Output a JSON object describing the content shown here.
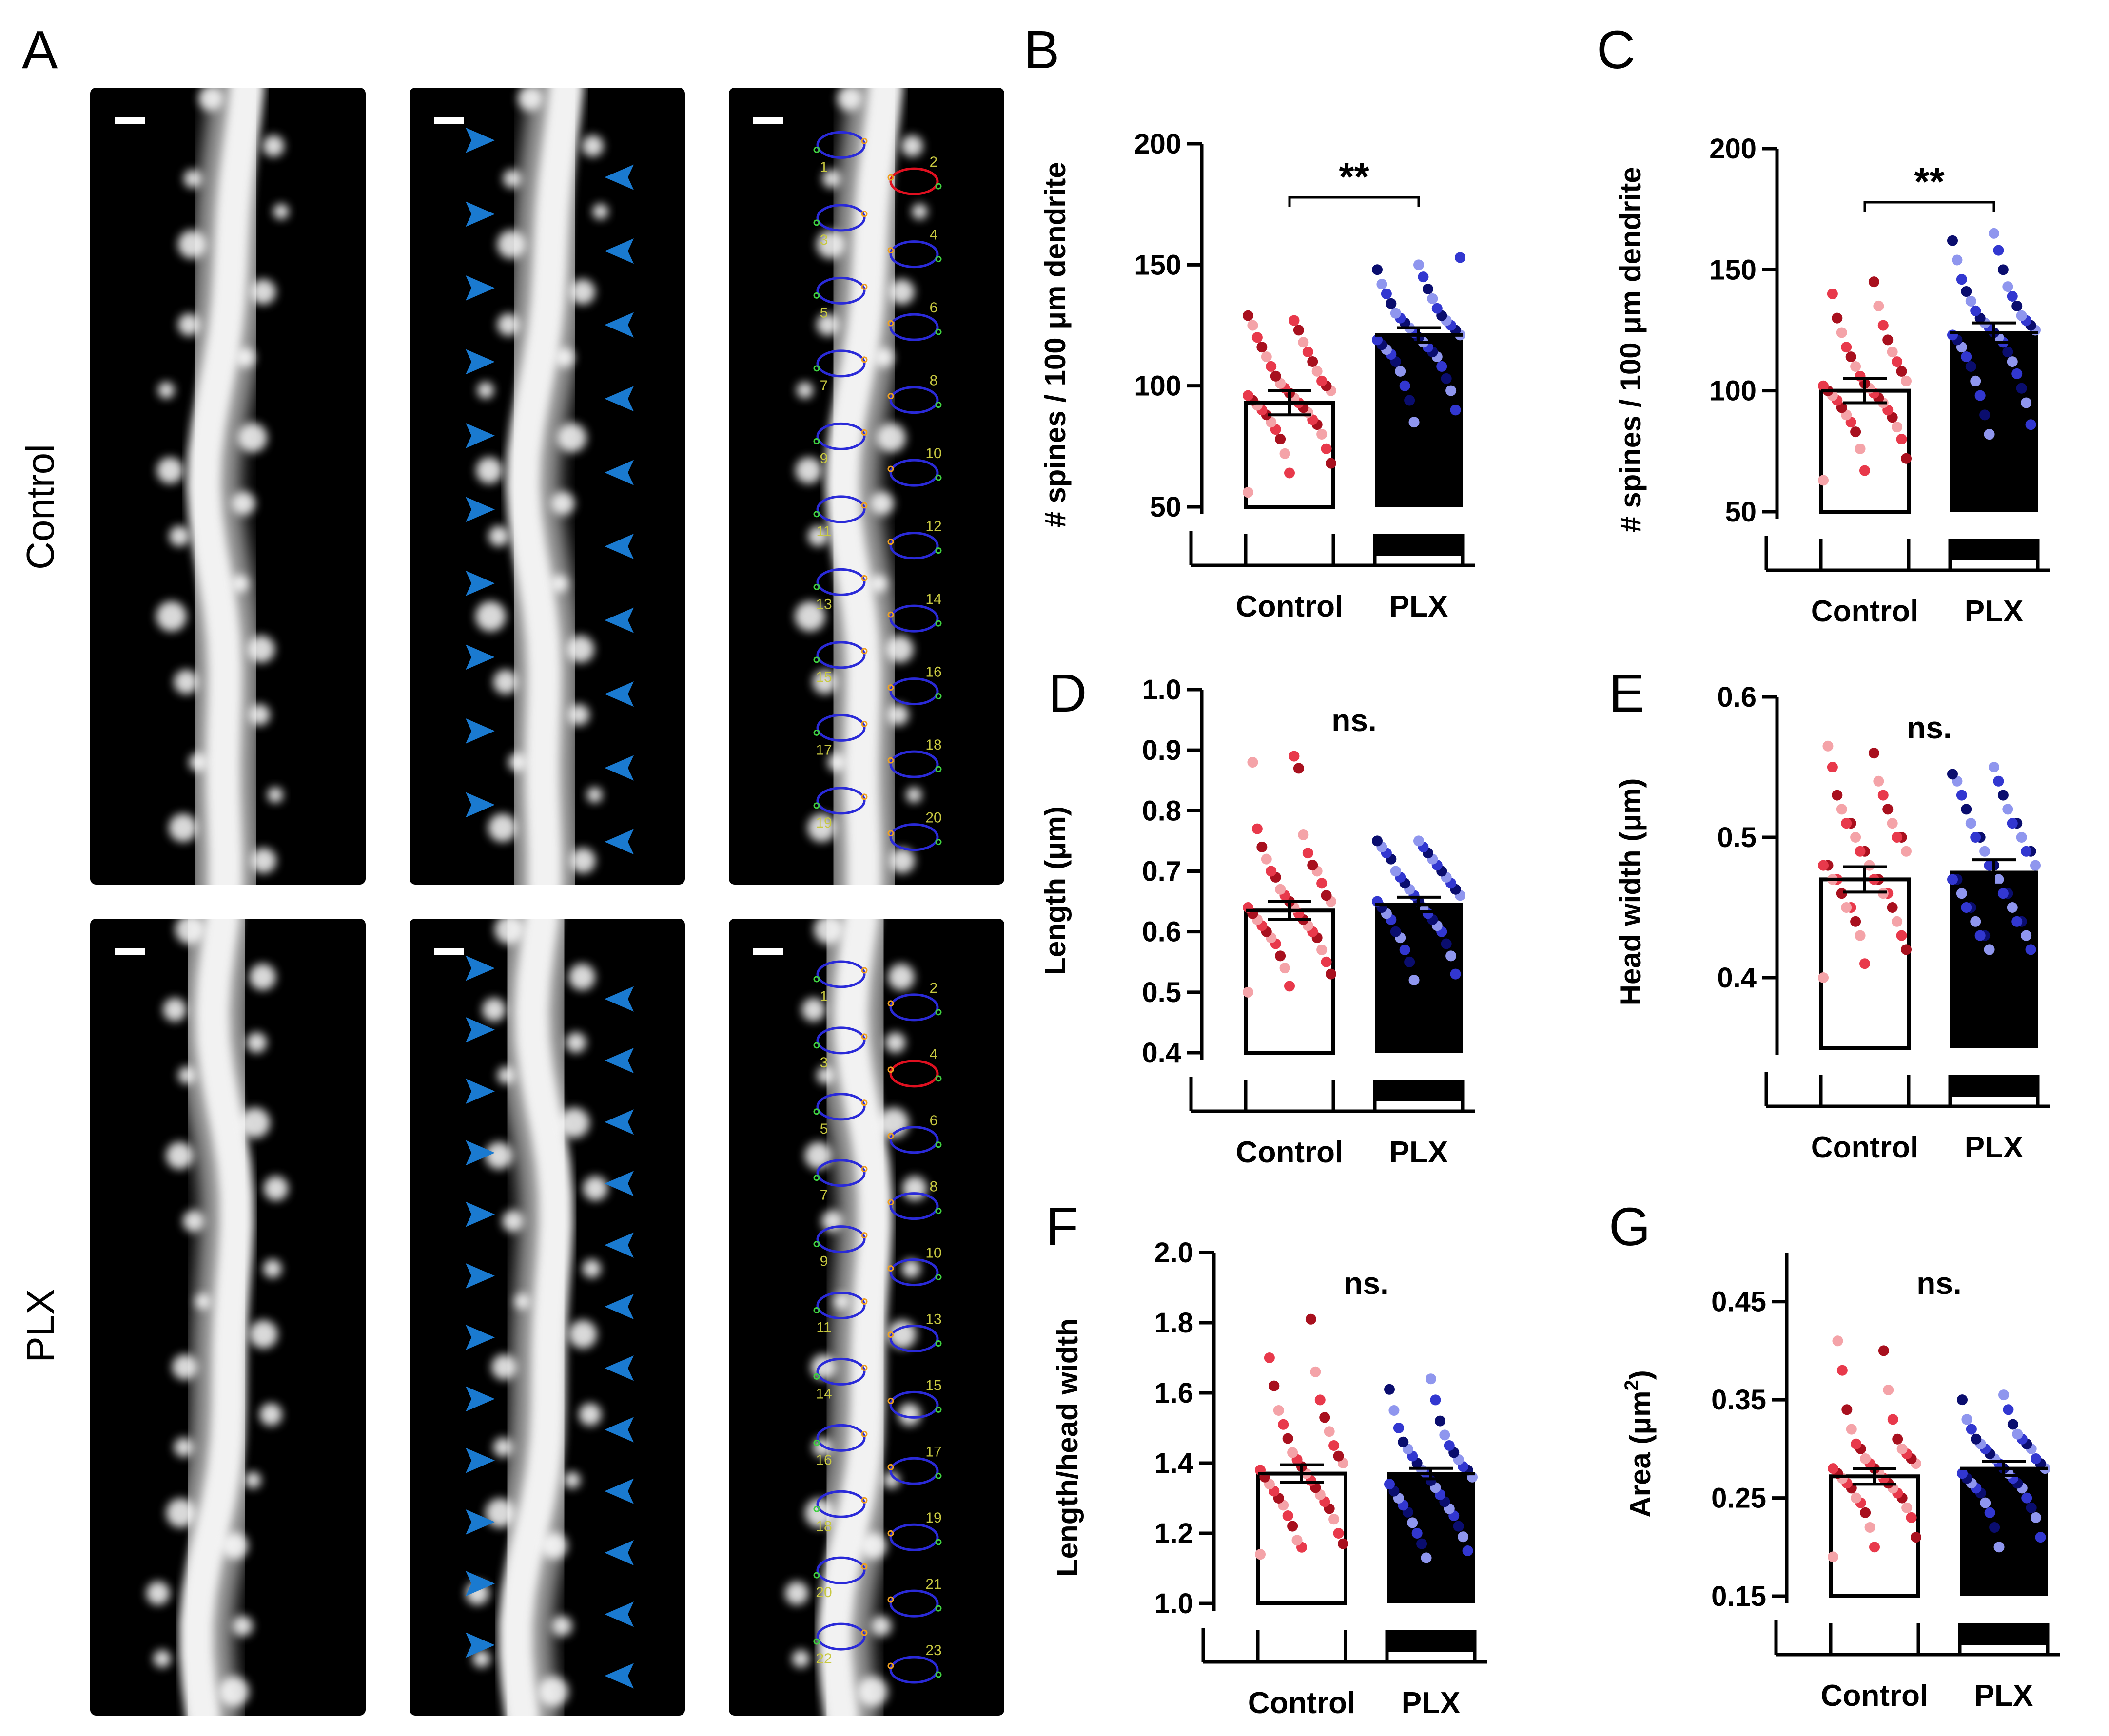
{
  "panel_letters": {
    "A": "A",
    "B": "B",
    "C": "C",
    "D": "D",
    "E": "E",
    "F": "F",
    "G": "G"
  },
  "row_labels": {
    "control": "Control",
    "plx": "PLX"
  },
  "spine_numbers": {
    "control": [
      "1",
      "2",
      "3",
      "4",
      "5",
      "6",
      "7",
      "8",
      "9",
      "10",
      "11",
      "12",
      "13",
      "14",
      "15",
      "16",
      "17",
      "18",
      "19",
      "20"
    ],
    "plx": [
      "1",
      "2",
      "3",
      "4",
      "5",
      "6",
      "7",
      "8",
      "9",
      "10",
      "11",
      "13",
      "14",
      "15",
      "16",
      "17",
      "18",
      "19",
      "20",
      "21",
      "22",
      "23"
    ]
  },
  "colors": {
    "control_light": "#f4a3a8",
    "control_mid": "#e8394b",
    "control_dark": "#a8101e",
    "plx_light": "#8f96ee",
    "plx_mid": "#3237d0",
    "plx_dark": "#0a0d6e",
    "arrow": "#1a7ad0",
    "trace_blue": "#2a2ad8",
    "trace_red": "#e01020"
  },
  "chart_data": [
    {
      "panel": "B",
      "type": "bar",
      "categories": [
        "Control",
        "PLX"
      ],
      "values": [
        93,
        121
      ],
      "sem": [
        5,
        3
      ],
      "ylabel": "# spines / 100 μm dendrite",
      "ylim": [
        50,
        200
      ],
      "yticks": [
        "50",
        "100",
        "150",
        "200"
      ],
      "annotation": "**",
      "points": {
        "Control": [
          56,
          64,
          68,
          72,
          74,
          78,
          80,
          82,
          84,
          85,
          86,
          88,
          89,
          90,
          91,
          92,
          93,
          94,
          95,
          96,
          97,
          98,
          99,
          100,
          101,
          102,
          104,
          106,
          108,
          110,
          112,
          114,
          116,
          118,
          120,
          123,
          125,
          127,
          129
        ],
        "PLX": [
          85,
          90,
          94,
          98,
          100,
          103,
          106,
          108,
          110,
          112,
          113,
          114,
          115,
          116,
          117,
          118,
          119,
          120,
          121,
          122,
          123,
          124,
          125,
          126,
          127,
          128,
          129,
          130,
          132,
          134,
          136,
          138,
          140,
          142,
          145,
          148,
          150,
          153
        ]
      }
    },
    {
      "panel": "C",
      "type": "bar",
      "categories": [
        "Control",
        "PLX"
      ],
      "values": [
        100,
        124
      ],
      "sem": [
        5,
        4
      ],
      "ylabel": "# spines / 100 μm dendrite",
      "ylim": [
        50,
        200
      ],
      "yticks": [
        "50",
        "100",
        "150",
        "200"
      ],
      "annotation": "**",
      "points": {
        "Control": [
          63,
          67,
          72,
          76,
          80,
          83,
          85,
          87,
          89,
          90,
          92,
          93,
          95,
          96,
          97,
          98,
          99,
          100,
          101,
          102,
          103,
          104,
          106,
          108,
          110,
          112,
          114,
          116,
          118,
          121,
          124,
          127,
          130,
          135,
          140,
          145
        ],
        "PLX": [
          82,
          86,
          90,
          95,
          98,
          101,
          104,
          107,
          110,
          112,
          114,
          116,
          118,
          120,
          121,
          122,
          123,
          124,
          125,
          126,
          127,
          128,
          129,
          130,
          131,
          133,
          135,
          137,
          139,
          141,
          143,
          146,
          150,
          154,
          158,
          162,
          165
        ]
      }
    },
    {
      "panel": "D",
      "type": "bar",
      "categories": [
        "Control",
        "PLX"
      ],
      "values": [
        0.635,
        0.645
      ],
      "sem": [
        0.015,
        0.012
      ],
      "ylabel": "Length (μm)",
      "ylim": [
        0.4,
        1.0
      ],
      "yticks": [
        "0.4",
        "0.5",
        "0.6",
        "0.7",
        "0.8",
        "0.9",
        "1.0"
      ],
      "annotation": "ns.",
      "points": {
        "Control": [
          0.5,
          0.51,
          0.53,
          0.54,
          0.55,
          0.56,
          0.57,
          0.58,
          0.59,
          0.59,
          0.6,
          0.6,
          0.61,
          0.61,
          0.62,
          0.62,
          0.63,
          0.63,
          0.64,
          0.64,
          0.65,
          0.65,
          0.66,
          0.66,
          0.67,
          0.68,
          0.69,
          0.7,
          0.7,
          0.71,
          0.72,
          0.73,
          0.74,
          0.76,
          0.77,
          0.87,
          0.88,
          0.89
        ],
        "PLX": [
          0.52,
          0.53,
          0.55,
          0.56,
          0.57,
          0.58,
          0.59,
          0.6,
          0.6,
          0.61,
          0.62,
          0.62,
          0.63,
          0.63,
          0.64,
          0.64,
          0.65,
          0.65,
          0.66,
          0.66,
          0.67,
          0.67,
          0.68,
          0.68,
          0.69,
          0.69,
          0.7,
          0.7,
          0.71,
          0.72,
          0.72,
          0.73,
          0.73,
          0.74,
          0.74,
          0.75,
          0.75
        ]
      }
    },
    {
      "panel": "E",
      "type": "bar",
      "categories": [
        "Control",
        "PLX"
      ],
      "values": [
        0.47,
        0.475
      ],
      "sem": [
        0.009,
        0.009
      ],
      "ylabel": "Head width (μm)",
      "ylim": [
        0.35,
        0.6
      ],
      "yticks": [
        "0.4",
        "0.5",
        "0.6"
      ],
      "annotation": "ns.",
      "points": {
        "Control": [
          0.4,
          0.41,
          0.42,
          0.43,
          0.43,
          0.44,
          0.44,
          0.45,
          0.45,
          0.45,
          0.46,
          0.46,
          0.46,
          0.47,
          0.47,
          0.47,
          0.47,
          0.48,
          0.48,
          0.48,
          0.49,
          0.49,
          0.49,
          0.5,
          0.5,
          0.5,
          0.51,
          0.51,
          0.51,
          0.52,
          0.52,
          0.53,
          0.53,
          0.54,
          0.55,
          0.56,
          0.565
        ],
        "PLX": [
          0.42,
          0.42,
          0.43,
          0.43,
          0.43,
          0.44,
          0.44,
          0.44,
          0.45,
          0.45,
          0.45,
          0.46,
          0.46,
          0.46,
          0.47,
          0.47,
          0.47,
          0.48,
          0.48,
          0.48,
          0.49,
          0.49,
          0.49,
          0.5,
          0.5,
          0.5,
          0.51,
          0.51,
          0.51,
          0.52,
          0.52,
          0.53,
          0.53,
          0.54,
          0.54,
          0.545,
          0.55
        ]
      }
    },
    {
      "panel": "F",
      "type": "bar",
      "categories": [
        "Control",
        "PLX"
      ],
      "values": [
        1.37,
        1.37
      ],
      "sem": [
        0.025,
        0.015
      ],
      "ylabel": "Length/head width",
      "ylim": [
        1.0,
        2.0
      ],
      "yticks": [
        "1.0",
        "1.2",
        "1.4",
        "1.6",
        "1.8",
        "2.0"
      ],
      "annotation": "ns.",
      "points": {
        "Control": [
          1.14,
          1.16,
          1.17,
          1.18,
          1.2,
          1.22,
          1.24,
          1.25,
          1.27,
          1.28,
          1.29,
          1.3,
          1.31,
          1.32,
          1.33,
          1.34,
          1.35,
          1.36,
          1.37,
          1.38,
          1.39,
          1.4,
          1.41,
          1.42,
          1.43,
          1.45,
          1.47,
          1.49,
          1.51,
          1.53,
          1.55,
          1.58,
          1.62,
          1.66,
          1.7,
          1.81
        ],
        "PLX": [
          1.13,
          1.15,
          1.17,
          1.19,
          1.2,
          1.22,
          1.23,
          1.25,
          1.26,
          1.27,
          1.28,
          1.29,
          1.3,
          1.31,
          1.32,
          1.33,
          1.34,
          1.35,
          1.36,
          1.37,
          1.38,
          1.38,
          1.39,
          1.4,
          1.41,
          1.42,
          1.43,
          1.44,
          1.45,
          1.46,
          1.48,
          1.5,
          1.52,
          1.55,
          1.58,
          1.61,
          1.64
        ]
      }
    },
    {
      "panel": "G",
      "type": "bar",
      "categories": [
        "Control",
        "PLX"
      ],
      "values": [
        0.272,
        0.28
      ],
      "sem": [
        0.008,
        0.007
      ],
      "ylabel": "Area (μm",
      "ylabel_sup": "2",
      "ylabel_end": ")",
      "ylim": [
        0.15,
        0.5
      ],
      "yticks": [
        "0.15",
        "0.25",
        "0.35",
        "0.45"
      ],
      "annotation": "ns.",
      "points": {
        "Control": [
          0.19,
          0.2,
          0.21,
          0.22,
          0.23,
          0.235,
          0.24,
          0.245,
          0.25,
          0.25,
          0.255,
          0.26,
          0.26,
          0.265,
          0.265,
          0.27,
          0.27,
          0.275,
          0.275,
          0.28,
          0.28,
          0.285,
          0.285,
          0.29,
          0.29,
          0.295,
          0.3,
          0.3,
          0.305,
          0.31,
          0.32,
          0.33,
          0.34,
          0.36,
          0.38,
          0.4,
          0.41
        ],
        "PLX": [
          0.2,
          0.21,
          0.22,
          0.23,
          0.235,
          0.24,
          0.245,
          0.25,
          0.255,
          0.26,
          0.26,
          0.265,
          0.265,
          0.27,
          0.27,
          0.275,
          0.275,
          0.28,
          0.28,
          0.285,
          0.285,
          0.29,
          0.29,
          0.295,
          0.3,
          0.3,
          0.305,
          0.305,
          0.31,
          0.31,
          0.315,
          0.32,
          0.325,
          0.33,
          0.34,
          0.35,
          0.355
        ]
      }
    }
  ]
}
